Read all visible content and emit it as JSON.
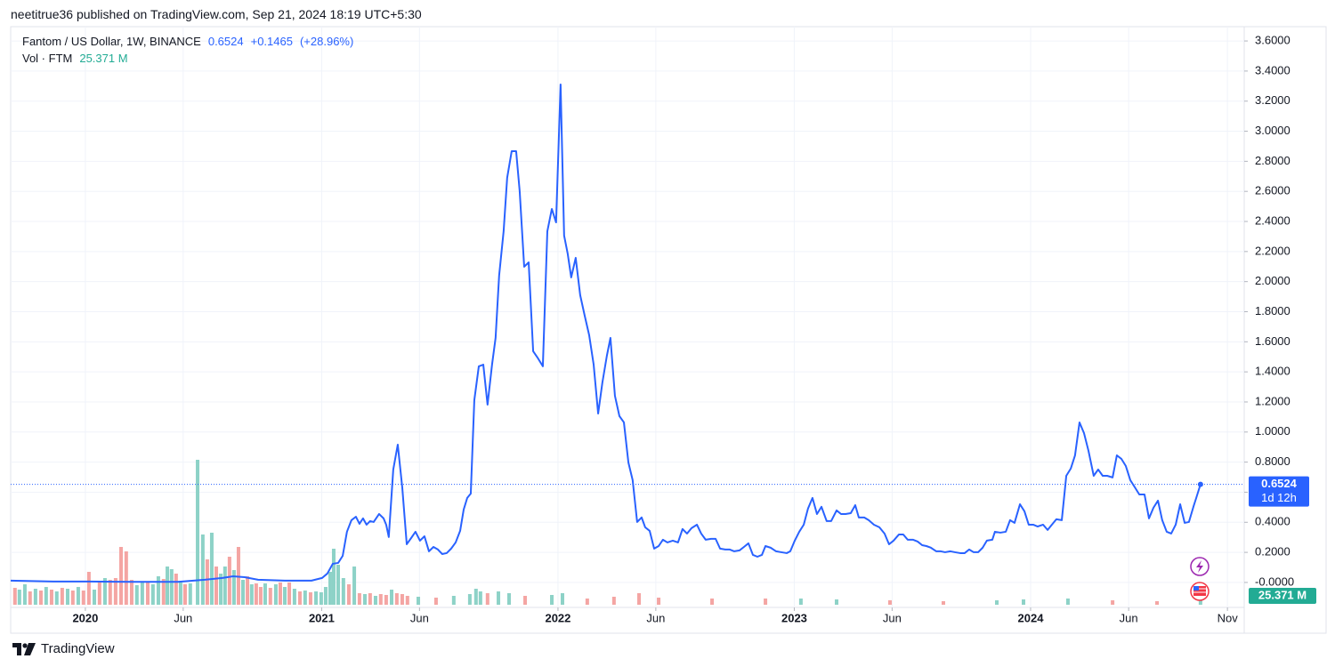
{
  "header": {
    "published": "neetitrue36 published on TradingView.com, Sep 21, 2024 18:19 UTC+5:30"
  },
  "chart_data": {
    "type": "line",
    "title": "Fantom / US Dollar, 1W, BINANCE",
    "change": {
      "value": 0.1465,
      "label": "+0.1465"
    },
    "change_percent": {
      "value": 28.96,
      "label": "(+28.96%)"
    },
    "countdown": "1d 12h",
    "grid": true,
    "x": [
      2019.684,
      2019.864,
      2020.015,
      2020.203,
      2020.392,
      2020.505,
      2020.58,
      2020.625,
      2020.674,
      2020.731,
      2020.844,
      2020.957,
      2021.002,
      2021.024,
      2021.047,
      2021.07,
      2021.089,
      2021.107,
      2021.126,
      2021.145,
      2021.16,
      2021.175,
      2021.19,
      2021.205,
      2021.22,
      2021.243,
      2021.262,
      2021.273,
      2021.284,
      2021.303,
      2021.322,
      2021.341,
      2021.36,
      2021.379,
      2021.397,
      2021.416,
      2021.435,
      2021.454,
      2021.473,
      2021.492,
      2021.51,
      2021.529,
      2021.548,
      2021.567,
      2021.586,
      2021.601,
      2021.616,
      2021.631,
      2021.646,
      2021.665,
      2021.684,
      2021.702,
      2021.721,
      2021.736,
      2021.751,
      2021.77,
      2021.785,
      2021.804,
      2021.823,
      2021.838,
      2021.857,
      2021.876,
      2021.895,
      2021.913,
      2021.936,
      2021.955,
      2021.974,
      2021.992,
      2022.011,
      2022.026,
      2022.041,
      2022.056,
      2022.075,
      2022.094,
      2022.113,
      2022.132,
      2022.151,
      2022.17,
      2022.188,
      2022.207,
      2022.222,
      2022.241,
      2022.26,
      2022.279,
      2022.298,
      2022.316,
      2022.335,
      2022.354,
      2022.369,
      2022.388,
      2022.407,
      2022.426,
      2022.444,
      2022.463,
      2022.486,
      2022.508,
      2022.527,
      2022.546,
      2022.565,
      2022.588,
      2022.606,
      2022.625,
      2022.648,
      2022.667,
      2022.686,
      2022.708,
      2022.727,
      2022.746,
      2022.768,
      2022.787,
      2022.806,
      2022.825,
      2022.844,
      2022.863,
      2022.878,
      2022.9,
      2022.923,
      2022.945,
      2022.968,
      2022.983,
      2023.002,
      2023.021,
      2023.04,
      2023.058,
      2023.077,
      2023.096,
      2023.115,
      2023.137,
      2023.156,
      2023.179,
      2023.198,
      2023.217,
      2023.239,
      2023.258,
      2023.273,
      2023.296,
      2023.315,
      2023.337,
      2023.36,
      2023.382,
      2023.401,
      2023.42,
      2023.443,
      2023.461,
      2023.48,
      2023.503,
      2023.522,
      2023.541,
      2023.559,
      2023.578,
      2023.601,
      2023.62,
      2023.638,
      2023.661,
      2023.68,
      2023.702,
      2023.721,
      2023.74,
      2023.759,
      2023.778,
      2023.797,
      2023.815,
      2023.838,
      2023.849,
      2023.872,
      2023.895,
      2023.913,
      2023.932,
      2023.955,
      2023.974,
      2023.992,
      2024.011,
      2024.03,
      2024.053,
      2024.072,
      2024.09,
      2024.109,
      2024.132,
      2024.151,
      2024.17,
      2024.188,
      2024.207,
      2024.226,
      2024.245,
      2024.267,
      2024.286,
      2024.305,
      2024.324,
      2024.347,
      2024.365,
      2024.384,
      2024.403,
      2024.422,
      2024.441,
      2024.46,
      2024.482,
      2024.501,
      2024.52,
      2024.539,
      2024.557,
      2024.576,
      2024.595,
      2024.614,
      2024.633,
      2024.652,
      2024.67,
      2024.689,
      2024.701,
      2024.719
    ],
    "series": [
      {
        "color": "#2962ff",
        "values": [
          0.012,
          0.006,
          0.006,
          0.004,
          0.004,
          0.018,
          0.03,
          0.041,
          0.035,
          0.018,
          0.012,
          0.012,
          0.03,
          0.059,
          0.124,
          0.13,
          0.177,
          0.337,
          0.414,
          0.437,
          0.39,
          0.426,
          0.384,
          0.408,
          0.402,
          0.455,
          0.426,
          0.384,
          0.302,
          0.751,
          0.916,
          0.633,
          0.254,
          0.296,
          0.337,
          0.278,
          0.307,
          0.207,
          0.236,
          0.219,
          0.189,
          0.195,
          0.225,
          0.266,
          0.343,
          0.485,
          0.562,
          0.591,
          1.212,
          1.437,
          1.448,
          1.182,
          1.448,
          1.626,
          2.04,
          2.335,
          2.69,
          2.867,
          2.867,
          2.601,
          2.099,
          2.128,
          1.537,
          1.496,
          1.437,
          2.335,
          2.483,
          2.394,
          3.311,
          2.306,
          2.187,
          2.028,
          2.158,
          1.91,
          1.774,
          1.644,
          1.448,
          1.123,
          1.33,
          1.508,
          1.626,
          1.241,
          1.106,
          1.064,
          0.798,
          0.68,
          0.402,
          0.432,
          0.367,
          0.343,
          0.225,
          0.242,
          0.284,
          0.266,
          0.278,
          0.266,
          0.355,
          0.325,
          0.361,
          0.384,
          0.325,
          0.284,
          0.29,
          0.29,
          0.225,
          0.219,
          0.219,
          0.207,
          0.213,
          0.236,
          0.26,
          0.183,
          0.171,
          0.183,
          0.242,
          0.231,
          0.207,
          0.201,
          0.195,
          0.207,
          0.278,
          0.337,
          0.384,
          0.491,
          0.562,
          0.455,
          0.503,
          0.408,
          0.408,
          0.479,
          0.455,
          0.455,
          0.461,
          0.514,
          0.432,
          0.432,
          0.414,
          0.384,
          0.367,
          0.325,
          0.254,
          0.278,
          0.319,
          0.319,
          0.284,
          0.284,
          0.272,
          0.248,
          0.242,
          0.231,
          0.207,
          0.207,
          0.201,
          0.207,
          0.201,
          0.195,
          0.195,
          0.219,
          0.201,
          0.201,
          0.231,
          0.278,
          0.284,
          0.337,
          0.331,
          0.337,
          0.414,
          0.396,
          0.52,
          0.473,
          0.384,
          0.384,
          0.372,
          0.384,
          0.349,
          0.384,
          0.42,
          0.414,
          0.709,
          0.757,
          0.845,
          1.064,
          0.993,
          0.875,
          0.709,
          0.751,
          0.709,
          0.709,
          0.698,
          0.845,
          0.822,
          0.774,
          0.68,
          0.633,
          0.585,
          0.585,
          0.426,
          0.497,
          0.544,
          0.414,
          0.337,
          0.325,
          0.384,
          0.52,
          0.396,
          0.402,
          0.503,
          0.562,
          0.6524
        ]
      }
    ],
    "xlim": [
      2019.684,
      2024.904
    ],
    "xticks": [
      2020,
      {
        "value": 2020.414,
        "label": "Jun"
      },
      2021,
      {
        "value": 2021.414,
        "label": "Jun"
      },
      2022,
      {
        "value": 2022.414,
        "label": "Jun"
      },
      2023,
      {
        "value": 2023.414,
        "label": "Jun"
      },
      2024,
      {
        "value": 2024.415,
        "label": "Jun"
      },
      {
        "value": 2024.833,
        "label": "Nov"
      }
    ],
    "ylim": [
      -0.166,
      3.695
    ],
    "yticks": [
      {
        "value": 0,
        "label": "-0.0000"
      },
      {
        "value": 0.2,
        "label": "0.2000"
      },
      {
        "value": 0.4,
        "label": "0.4000"
      },
      {
        "value": 0.6,
        "label": "0.6000"
      },
      {
        "value": 0.8,
        "label": "0.8000"
      },
      {
        "value": 1.0,
        "label": "1.0000"
      },
      {
        "value": 1.2,
        "label": "1.2000"
      },
      {
        "value": 1.4,
        "label": "1.4000"
      },
      {
        "value": 1.6,
        "label": "1.6000"
      },
      {
        "value": 1.8,
        "label": "1.8000"
      },
      {
        "value": 2.0,
        "label": "2.0000"
      },
      {
        "value": 2.2,
        "label": "2.2000"
      },
      {
        "value": 2.4,
        "label": "2.4000"
      },
      {
        "value": 2.6,
        "label": "2.6000"
      },
      {
        "value": 2.8,
        "label": "2.8000"
      },
      {
        "value": 3.0,
        "label": "3.0000"
      },
      {
        "value": 3.2,
        "label": "3.2000"
      },
      {
        "value": 3.4,
        "label": "3.4000"
      },
      {
        "value": 3.6,
        "label": "3.6000"
      }
    ],
    "volume": {
      "label": "Vol · FTM",
      "last_value_label": "25.371 M",
      "up_color": "#8dd2c7",
      "down_color": "#f4a5a3",
      "tag_color": "#22ab94",
      "vlim": [
        0,
        1000
      ],
      "x": [
        2019.702,
        2019.721,
        2019.744,
        2019.766,
        2019.789,
        2019.812,
        2019.834,
        2019.857,
        2019.879,
        2019.902,
        2019.925,
        2019.947,
        2019.97,
        2019.992,
        2020.015,
        2020.038,
        2020.06,
        2020.083,
        2020.105,
        2020.128,
        2020.151,
        2020.173,
        2020.196,
        2020.218,
        2020.241,
        2020.264,
        2020.286,
        2020.309,
        2020.331,
        2020.347,
        2020.365,
        2020.384,
        2020.403,
        2020.422,
        2020.444,
        2020.475,
        2020.497,
        2020.516,
        2020.535,
        2020.554,
        2020.573,
        2020.591,
        2020.61,
        2020.629,
        2020.648,
        2020.667,
        2020.686,
        2020.704,
        2020.723,
        2020.742,
        2020.761,
        2020.783,
        2020.806,
        2020.825,
        2020.844,
        2020.863,
        2020.885,
        2020.908,
        2020.93,
        2020.953,
        2020.976,
        2020.998,
        2021.017,
        2021.036,
        2021.051,
        2021.07,
        2021.092,
        2021.115,
        2021.138,
        2021.16,
        2021.183,
        2021.205,
        2021.228,
        2021.25,
        2021.273,
        2021.296,
        2021.318,
        2021.341,
        2021.363,
        2021.409,
        2021.484,
        2021.559,
        2021.627,
        2021.653,
        2021.672,
        2021.702,
        2021.748,
        2021.793,
        2021.861,
        2021.974,
        2022.019,
        2022.124,
        2022.237,
        2022.343,
        2022.426,
        2022.652,
        2022.878,
        2023.028,
        2023.179,
        2023.405,
        2023.631,
        2023.857,
        2023.97,
        2024.158,
        2024.347,
        2024.535,
        2024.719
      ],
      "values": [
        95,
        85,
        115,
        75,
        90,
        80,
        100,
        85,
        75,
        95,
        90,
        80,
        100,
        80,
        185,
        85,
        125,
        150,
        140,
        150,
        325,
        300,
        140,
        110,
        125,
        125,
        115,
        160,
        145,
        215,
        200,
        175,
        125,
        115,
        120,
        815,
        395,
        255,
        405,
        215,
        175,
        215,
        270,
        195,
        325,
        140,
        160,
        115,
        120,
        100,
        120,
        95,
        115,
        125,
        100,
        125,
        90,
        75,
        80,
        70,
        75,
        70,
        100,
        185,
        315,
        225,
        150,
        115,
        215,
        65,
        60,
        65,
        50,
        60,
        55,
        85,
        65,
        60,
        50,
        45,
        40,
        50,
        60,
        90,
        75,
        65,
        75,
        65,
        50,
        55,
        65,
        35,
        45,
        65,
        40,
        35,
        35,
        35,
        30,
        25,
        20,
        25,
        30,
        35,
        25,
        20,
        25.371
      ],
      "rising": [
        false,
        true,
        true,
        false,
        true,
        false,
        true,
        false,
        true,
        false,
        true,
        false,
        true,
        false,
        false,
        true,
        false,
        true,
        false,
        false,
        false,
        false,
        false,
        true,
        true,
        false,
        true,
        true,
        false,
        true,
        true,
        false,
        true,
        false,
        true,
        true,
        true,
        false,
        true,
        false,
        true,
        true,
        false,
        true,
        false,
        true,
        false,
        true,
        false,
        false,
        true,
        false,
        true,
        false,
        true,
        false,
        true,
        false,
        true,
        false,
        true,
        true,
        true,
        true,
        true,
        true,
        true,
        false,
        true,
        false,
        true,
        false,
        true,
        false,
        false,
        true,
        false,
        false,
        false,
        true,
        false,
        true,
        true,
        true,
        true,
        false,
        true,
        true,
        false,
        true,
        true,
        false,
        false,
        false,
        false,
        false,
        false,
        true,
        true,
        false,
        false,
        true,
        true,
        true,
        false,
        false,
        true
      ]
    }
  },
  "footer": {
    "brand": "TradingView"
  }
}
